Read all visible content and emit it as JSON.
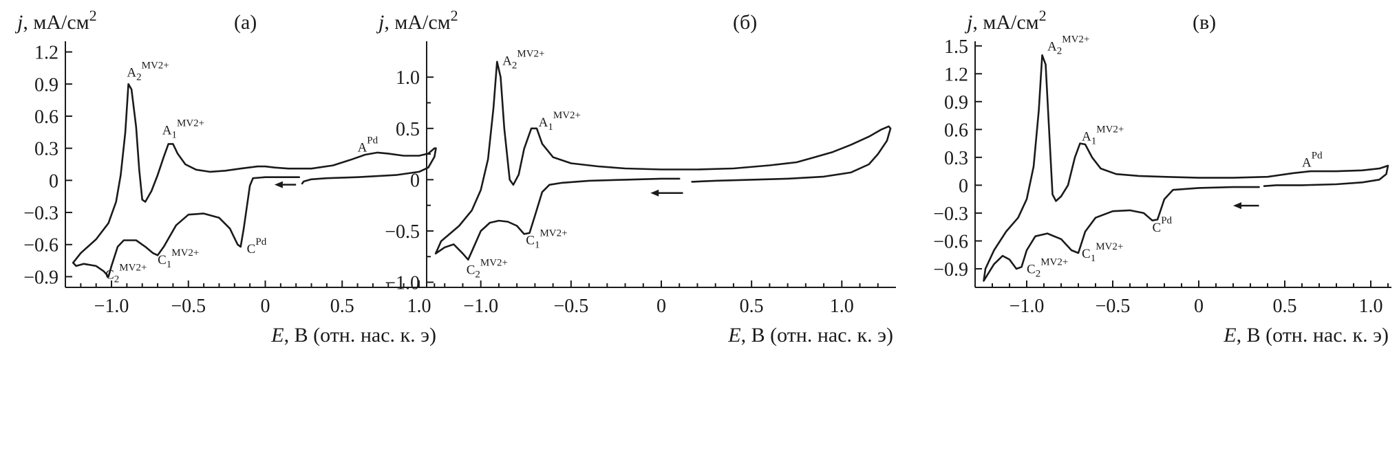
{
  "chart_data": [
    {
      "type": "line",
      "panel_label": "(а)",
      "ylabel": {
        "var": "j",
        "unit": ", мА/см",
        "sup": "2"
      },
      "xlabel": {
        "var": "E",
        "unit": ", В (отн. нас. к. э)"
      },
      "xlim": [
        -1.3,
        1.13
      ],
      "ylim": [
        -1.0,
        1.3
      ],
      "xticks": [
        -1.0,
        -0.5,
        0,
        0.5,
        1.0
      ],
      "xtick_labels": [
        "−1.0",
        "−0.5",
        "0",
        "0.5",
        "1.0"
      ],
      "xminor": [
        -1.2,
        -1.1,
        -0.9,
        -0.8,
        -0.7,
        -0.6,
        -0.4,
        -0.3,
        -0.2,
        -0.1,
        0.1,
        0.2,
        0.3,
        0.4,
        0.6,
        0.7,
        0.8,
        0.9,
        1.1
      ],
      "yticks": [
        -0.9,
        -0.6,
        -0.3,
        0,
        0.3,
        0.6,
        0.9,
        1.2
      ],
      "ytick_labels": [
        "−0.9",
        "−0.6",
        "−0.3",
        "0",
        "0.3",
        "0.6",
        "0.9",
        "1.2"
      ],
      "yminor": [],
      "series": [
        {
          "points": [
            [
              0.22,
              0.03
            ],
            [
              0.2,
              0.03
            ],
            [
              0.0,
              0.03
            ],
            [
              -0.08,
              0.02
            ],
            [
              -0.1,
              -0.05
            ],
            [
              -0.14,
              -0.45
            ],
            [
              -0.16,
              -0.62
            ],
            [
              -0.18,
              -0.6
            ],
            [
              -0.23,
              -0.45
            ],
            [
              -0.3,
              -0.35
            ],
            [
              -0.4,
              -0.31
            ],
            [
              -0.5,
              -0.32
            ],
            [
              -0.58,
              -0.42
            ],
            [
              -0.66,
              -0.62
            ],
            [
              -0.7,
              -0.7
            ],
            [
              -0.73,
              -0.68
            ],
            [
              -0.78,
              -0.62
            ],
            [
              -0.84,
              -0.56
            ],
            [
              -0.92,
              -0.56
            ],
            [
              -0.96,
              -0.62
            ],
            [
              -1.0,
              -0.8
            ],
            [
              -1.02,
              -0.9
            ],
            [
              -1.05,
              -0.85
            ],
            [
              -1.1,
              -0.8
            ],
            [
              -1.18,
              -0.78
            ],
            [
              -1.23,
              -0.8
            ],
            [
              -1.25,
              -0.77
            ],
            [
              -1.2,
              -0.68
            ],
            [
              -1.1,
              -0.55
            ],
            [
              -1.02,
              -0.4
            ],
            [
              -0.97,
              -0.2
            ],
            [
              -0.94,
              0.05
            ],
            [
              -0.91,
              0.45
            ],
            [
              -0.89,
              0.9
            ],
            [
              -0.87,
              0.85
            ],
            [
              -0.84,
              0.5
            ],
            [
              -0.82,
              0.1
            ],
            [
              -0.8,
              -0.18
            ],
            [
              -0.78,
              -0.2
            ],
            [
              -0.74,
              -0.1
            ],
            [
              -0.7,
              0.05
            ],
            [
              -0.66,
              0.22
            ],
            [
              -0.63,
              0.34
            ],
            [
              -0.6,
              0.34
            ],
            [
              -0.57,
              0.25
            ],
            [
              -0.52,
              0.15
            ],
            [
              -0.45,
              0.1
            ],
            [
              -0.36,
              0.08
            ],
            [
              -0.26,
              0.09
            ],
            [
              -0.16,
              0.11
            ],
            [
              -0.05,
              0.13
            ],
            [
              0.0,
              0.13
            ],
            [
              0.06,
              0.12
            ],
            [
              0.15,
              0.11
            ],
            [
              0.3,
              0.11
            ],
            [
              0.44,
              0.14
            ],
            [
              0.55,
              0.19
            ],
            [
              0.65,
              0.24
            ],
            [
              0.73,
              0.26
            ],
            [
              0.8,
              0.25
            ],
            [
              0.9,
              0.23
            ],
            [
              1.0,
              0.23
            ],
            [
              1.06,
              0.25
            ],
            [
              1.1,
              0.3
            ],
            [
              1.11,
              0.3
            ],
            [
              1.1,
              0.22
            ],
            [
              1.06,
              0.12
            ],
            [
              1.0,
              0.08
            ],
            [
              0.85,
              0.05
            ],
            [
              0.6,
              0.03
            ],
            [
              0.4,
              0.02
            ],
            [
              0.3,
              0.01
            ],
            [
              0.25,
              -0.01
            ],
            [
              0.24,
              -0.03
            ]
          ]
        }
      ],
      "arrow": {
        "from": [
          0.2,
          -0.04
        ],
        "to": [
          0.06,
          -0.04
        ]
      },
      "annotations": [
        {
          "text": "A",
          "sub": "2",
          "sup": "MV2+",
          "x": -0.9,
          "y": 0.97
        },
        {
          "text": "A",
          "sub": "1",
          "sup": "MV2+",
          "x": -0.67,
          "y": 0.43
        },
        {
          "text": "A",
          "sub": "",
          "sup": "Pd",
          "x": 0.6,
          "y": 0.27
        },
        {
          "text": "C",
          "sub": "2",
          "sup": "MV2+",
          "x": -1.04,
          "y": -0.92
        },
        {
          "text": "C",
          "sub": "1",
          "sup": "MV2+",
          "x": -0.7,
          "y": -0.78
        },
        {
          "text": "C",
          "sub": "",
          "sup": "Pd",
          "x": -0.12,
          "y": -0.68
        }
      ]
    },
    {
      "type": "line",
      "panel_label": "(б)",
      "ylabel": {
        "var": "j",
        "unit": ", мА/см",
        "sup": "2"
      },
      "xlabel": {
        "var": "E",
        "unit": ", В (отн. нас. к. э)"
      },
      "xlim": [
        -1.3,
        1.3
      ],
      "ylim": [
        -1.05,
        1.35
      ],
      "xticks": [
        -1.0,
        -0.5,
        0,
        0.5,
        1.0
      ],
      "xtick_labels": [
        "−1.0",
        "−0.5",
        "0",
        "0.5",
        "1.0"
      ],
      "xminor": [
        -1.2,
        -1.1,
        -0.9,
        -0.8,
        -0.7,
        -0.6,
        -0.4,
        -0.3,
        -0.2,
        -0.1,
        0.1,
        0.2,
        0.3,
        0.4,
        0.6,
        0.7,
        0.8,
        0.9,
        1.1,
        1.2
      ],
      "yticks": [
        -1.0,
        -0.5,
        0,
        0.5,
        1.0
      ],
      "ytick_labels": [
        "−1.0",
        "−0.5",
        "0",
        "0.5",
        "1.0"
      ],
      "yminor": [
        -0.75,
        -0.25,
        0.25,
        0.75
      ],
      "series": [
        {
          "points": [
            [
              0.1,
              0.01
            ],
            [
              0.0,
              0.01
            ],
            [
              -0.2,
              0.0
            ],
            [
              -0.4,
              -0.01
            ],
            [
              -0.55,
              -0.03
            ],
            [
              -0.62,
              -0.05
            ],
            [
              -0.66,
              -0.12
            ],
            [
              -0.7,
              -0.35
            ],
            [
              -0.73,
              -0.52
            ],
            [
              -0.76,
              -0.53
            ],
            [
              -0.8,
              -0.45
            ],
            [
              -0.85,
              -0.41
            ],
            [
              -0.9,
              -0.4
            ],
            [
              -0.95,
              -0.42
            ],
            [
              -1.0,
              -0.5
            ],
            [
              -1.05,
              -0.7
            ],
            [
              -1.07,
              -0.78
            ],
            [
              -1.1,
              -0.72
            ],
            [
              -1.15,
              -0.63
            ],
            [
              -1.2,
              -0.66
            ],
            [
              -1.25,
              -0.72
            ],
            [
              -1.22,
              -0.6
            ],
            [
              -1.12,
              -0.45
            ],
            [
              -1.05,
              -0.3
            ],
            [
              -1.0,
              -0.1
            ],
            [
              -0.96,
              0.2
            ],
            [
              -0.93,
              0.7
            ],
            [
              -0.91,
              1.15
            ],
            [
              -0.89,
              1.0
            ],
            [
              -0.87,
              0.5
            ],
            [
              -0.84,
              0.0
            ],
            [
              -0.82,
              -0.05
            ],
            [
              -0.79,
              0.05
            ],
            [
              -0.76,
              0.3
            ],
            [
              -0.72,
              0.5
            ],
            [
              -0.69,
              0.5
            ],
            [
              -0.66,
              0.35
            ],
            [
              -0.6,
              0.22
            ],
            [
              -0.5,
              0.16
            ],
            [
              -0.35,
              0.13
            ],
            [
              -0.2,
              0.11
            ],
            [
              0.0,
              0.1
            ],
            [
              0.2,
              0.1
            ],
            [
              0.4,
              0.11
            ],
            [
              0.6,
              0.14
            ],
            [
              0.75,
              0.17
            ],
            [
              0.85,
              0.22
            ],
            [
              0.95,
              0.27
            ],
            [
              1.05,
              0.34
            ],
            [
              1.15,
              0.42
            ],
            [
              1.22,
              0.49
            ],
            [
              1.26,
              0.52
            ],
            [
              1.27,
              0.5
            ],
            [
              1.25,
              0.38
            ],
            [
              1.2,
              0.25
            ],
            [
              1.15,
              0.15
            ],
            [
              1.05,
              0.07
            ],
            [
              0.9,
              0.03
            ],
            [
              0.7,
              0.01
            ],
            [
              0.5,
              0.0
            ],
            [
              0.3,
              -0.01
            ],
            [
              0.17,
              -0.02
            ]
          ]
        }
      ],
      "arrow": {
        "from": [
          0.12,
          -0.13
        ],
        "to": [
          -0.06,
          -0.13
        ]
      },
      "annotations": [
        {
          "text": "A",
          "sub": "2",
          "sup": "MV2+",
          "x": -0.88,
          "y": 1.12
        },
        {
          "text": "A",
          "sub": "1",
          "sup": "MV2+",
          "x": -0.68,
          "y": 0.52
        },
        {
          "text": "C",
          "sub": "2",
          "sup": "MV2+",
          "x": -1.08,
          "y": -0.92
        },
        {
          "text": "C",
          "sub": "1",
          "sup": "MV2+",
          "x": -0.75,
          "y": -0.63
        }
      ]
    },
    {
      "type": "line",
      "panel_label": "(в)",
      "ylabel": {
        "var": "j",
        "unit": ", мА/см",
        "sup": "2"
      },
      "xlabel": {
        "var": "E",
        "unit": ", В (отн. нас. к. э)"
      },
      "xlim": [
        -1.3,
        1.12
      ],
      "ylim": [
        -1.1,
        1.55
      ],
      "xticks": [
        -1.0,
        -0.5,
        0,
        0.5,
        1.0
      ],
      "xtick_labels": [
        "−1.0",
        "−0.5",
        "0",
        "0.5",
        "1.0"
      ],
      "xminor": [
        -1.2,
        -1.1,
        -0.9,
        -0.8,
        -0.7,
        -0.6,
        -0.4,
        -0.3,
        -0.2,
        -0.1,
        0.1,
        0.2,
        0.3,
        0.4,
        0.6,
        0.7,
        0.8,
        0.9,
        1.1
      ],
      "yticks": [
        -0.9,
        -0.6,
        -0.3,
        0,
        0.3,
        0.6,
        0.9,
        1.2,
        1.5
      ],
      "ytick_labels": [
        "−0.9",
        "−0.6",
        "−0.3",
        "0",
        "0.3",
        "0.6",
        "0.9",
        "1.2",
        "1.5"
      ],
      "yminor": [],
      "series": [
        {
          "points": [
            [
              0.35,
              -0.02
            ],
            [
              0.2,
              -0.02
            ],
            [
              0.0,
              -0.03
            ],
            [
              -0.15,
              -0.05
            ],
            [
              -0.2,
              -0.15
            ],
            [
              -0.24,
              -0.37
            ],
            [
              -0.27,
              -0.38
            ],
            [
              -0.32,
              -0.3
            ],
            [
              -0.4,
              -0.27
            ],
            [
              -0.5,
              -0.28
            ],
            [
              -0.6,
              -0.35
            ],
            [
              -0.66,
              -0.5
            ],
            [
              -0.7,
              -0.73
            ],
            [
              -0.74,
              -0.7
            ],
            [
              -0.8,
              -0.58
            ],
            [
              -0.88,
              -0.52
            ],
            [
              -0.95,
              -0.55
            ],
            [
              -1.0,
              -0.7
            ],
            [
              -1.03,
              -0.88
            ],
            [
              -1.06,
              -0.9
            ],
            [
              -1.1,
              -0.8
            ],
            [
              -1.14,
              -0.76
            ],
            [
              -1.19,
              -0.85
            ],
            [
              -1.25,
              -1.03
            ],
            [
              -1.24,
              -0.9
            ],
            [
              -1.19,
              -0.7
            ],
            [
              -1.12,
              -0.5
            ],
            [
              -1.05,
              -0.35
            ],
            [
              -1.0,
              -0.15
            ],
            [
              -0.96,
              0.2
            ],
            [
              -0.93,
              0.8
            ],
            [
              -0.91,
              1.4
            ],
            [
              -0.89,
              1.3
            ],
            [
              -0.87,
              0.6
            ],
            [
              -0.85,
              -0.1
            ],
            [
              -0.83,
              -0.17
            ],
            [
              -0.8,
              -0.12
            ],
            [
              -0.76,
              0.0
            ],
            [
              -0.72,
              0.3
            ],
            [
              -0.69,
              0.45
            ],
            [
              -0.66,
              0.44
            ],
            [
              -0.62,
              0.3
            ],
            [
              -0.57,
              0.18
            ],
            [
              -0.48,
              0.12
            ],
            [
              -0.35,
              0.1
            ],
            [
              -0.2,
              0.09
            ],
            [
              0.0,
              0.08
            ],
            [
              0.2,
              0.08
            ],
            [
              0.4,
              0.09
            ],
            [
              0.55,
              0.13
            ],
            [
              0.65,
              0.15
            ],
            [
              0.8,
              0.15
            ],
            [
              0.95,
              0.16
            ],
            [
              1.05,
              0.18
            ],
            [
              1.1,
              0.21
            ],
            [
              1.09,
              0.12
            ],
            [
              1.05,
              0.06
            ],
            [
              0.95,
              0.03
            ],
            [
              0.8,
              0.01
            ],
            [
              0.6,
              0.0
            ],
            [
              0.45,
              0.0
            ],
            [
              0.38,
              -0.01
            ]
          ]
        }
      ],
      "arrow": {
        "from": [
          0.35,
          -0.22
        ],
        "to": [
          0.2,
          -0.22
        ]
      },
      "annotations": [
        {
          "text": "A",
          "sub": "2",
          "sup": "MV2+",
          "x": -0.88,
          "y": 1.45
        },
        {
          "text": "A",
          "sub": "1",
          "sup": "MV2+",
          "x": -0.68,
          "y": 0.48
        },
        {
          "text": "A",
          "sub": "",
          "sup": "Pd",
          "x": 0.6,
          "y": 0.2
        },
        {
          "text": "C",
          "sub": "2",
          "sup": "MV2+",
          "x": -1.0,
          "y": -0.95
        },
        {
          "text": "C",
          "sub": "1",
          "sup": "MV2+",
          "x": -0.68,
          "y": -0.78
        },
        {
          "text": "C",
          "sub": "",
          "sup": "Pd",
          "x": -0.27,
          "y": -0.5
        }
      ]
    }
  ]
}
